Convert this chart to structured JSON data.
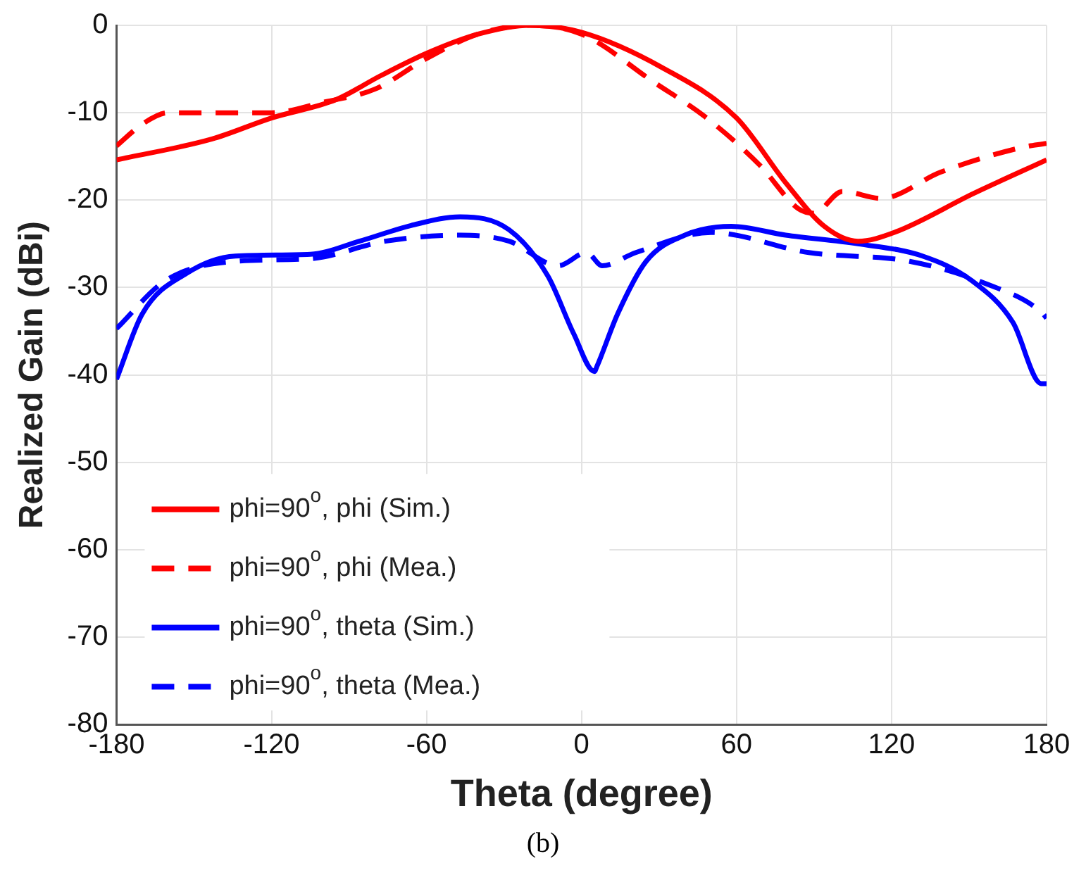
{
  "chart_data": {
    "type": "line",
    "xlabel": "Theta (degree)",
    "ylabel": "Realized Gain (dBi)",
    "annotations": [
      "(b)"
    ],
    "xlim": [
      -180,
      180
    ],
    "xticks": [
      -180,
      -120,
      -60,
      0,
      60,
      120,
      180
    ],
    "ylim": [
      -80,
      0
    ],
    "yticks": [
      -80,
      -70,
      -60,
      -50,
      -40,
      -30,
      -20,
      -10,
      0
    ],
    "grid": true,
    "legend": "bottom left",
    "marker": "none",
    "series": [
      {
        "name": "phi=90$^{o}$, phi (Sim.)",
        "color": "#ff0000",
        "line_style": "solid",
        "x": [
          -180,
          -143,
          -120,
          -95,
          -78,
          -60,
          -40,
          -20,
          0,
          31,
          60,
          79,
          94,
          107,
          121,
          152,
          180
        ],
        "values": [
          -15.4,
          -13,
          -10.6,
          -8.5,
          -5.8,
          -3.2,
          -1,
          0,
          -0.8,
          -4.8,
          -10.6,
          -18,
          -23,
          -24.7,
          -23.7,
          -19.2,
          -15.4
        ]
      },
      {
        "name": "phi=90$^{o}$, phi (Mea.)",
        "color": "#ff0000",
        "line_style": "dashed",
        "x": [
          -180,
          -170,
          -160,
          -120,
          -100,
          -80,
          -60,
          -40,
          -20,
          0,
          28,
          48,
          69,
          84,
          90,
          101,
          116,
          139,
          170,
          180
        ],
        "values": [
          -13.8,
          -11.3,
          -10,
          -10,
          -8.8,
          -7.3,
          -3.8,
          -1,
          0,
          -1,
          -6.5,
          -10.5,
          -16,
          -21,
          -21.5,
          -19,
          -19.8,
          -16.8,
          -14,
          -13.5
        ]
      },
      {
        "name": "phi=90$^{o}$, theta (Sim.)",
        "color": "#0000ff",
        "line_style": "solid",
        "x": [
          -180,
          -170,
          -153,
          -134,
          -105,
          -86,
          -66,
          -47,
          -28,
          -13,
          -3,
          5,
          6,
          14,
          25,
          40,
          58,
          79,
          107,
          132,
          151,
          167,
          178,
          180
        ],
        "values": [
          -40.5,
          -33,
          -28.4,
          -26.4,
          -26.2,
          -24.7,
          -22.9,
          -21.9,
          -23.4,
          -28.7,
          -35.3,
          -39.6,
          -39,
          -33,
          -27,
          -24,
          -23,
          -24,
          -25,
          -26.4,
          -29.2,
          -34,
          -41,
          -41
        ]
      },
      {
        "name": "phi=90$^{o}$, theta (Mea.)",
        "color": "#0000ff",
        "line_style": "dashed",
        "x": [
          -180,
          -161,
          -134,
          -105,
          -76,
          -47,
          -28,
          -9,
          2,
          8,
          21,
          50,
          88,
          127,
          156,
          178,
          180
        ],
        "values": [
          -34.7,
          -29.2,
          -27,
          -26.7,
          -24.7,
          -24,
          -24.7,
          -27.5,
          -26,
          -27.5,
          -26,
          -23.7,
          -26,
          -27,
          -29.5,
          -32.8,
          -33.5
        ]
      }
    ]
  }
}
